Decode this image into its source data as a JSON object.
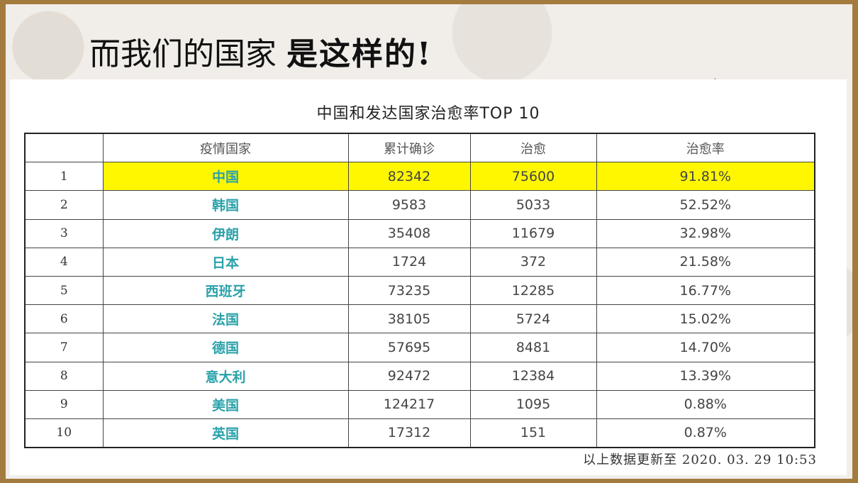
{
  "heading": {
    "part1": "而我们的国家",
    "part2": "是这样的!"
  },
  "table": {
    "title": "中国和发达国家治愈率TOP 10",
    "headers": [
      "",
      "疫情国家",
      "累计确诊",
      "治愈",
      "治愈率"
    ],
    "rows": [
      {
        "rank": "1",
        "country": "中国",
        "confirmed": "82342",
        "recovered": "75600",
        "rate": "91.81%"
      },
      {
        "rank": "2",
        "country": "韩国",
        "confirmed": "9583",
        "recovered": "5033",
        "rate": "52.52%"
      },
      {
        "rank": "3",
        "country": "伊朗",
        "confirmed": "35408",
        "recovered": "11679",
        "rate": "32.98%"
      },
      {
        "rank": "4",
        "country": "日本",
        "confirmed": "1724",
        "recovered": "372",
        "rate": "21.58%"
      },
      {
        "rank": "5",
        "country": "西班牙",
        "confirmed": "73235",
        "recovered": "12285",
        "rate": "16.77%"
      },
      {
        "rank": "6",
        "country": "法国",
        "confirmed": "38105",
        "recovered": "5724",
        "rate": "15.02%"
      },
      {
        "rank": "7",
        "country": "德国",
        "confirmed": "57695",
        "recovered": "8481",
        "rate": "14.70%"
      },
      {
        "rank": "8",
        "country": "意大利",
        "confirmed": "92472",
        "recovered": "12384",
        "rate": "13.39%"
      },
      {
        "rank": "9",
        "country": "美国",
        "confirmed": "124217",
        "recovered": "1095",
        "rate": "0.88%"
      },
      {
        "rank": "10",
        "country": "英国",
        "confirmed": "17312",
        "recovered": "151",
        "rate": "0.87%"
      }
    ],
    "update_note": "以上数据更新至 2020. 03. 29  10:53"
  },
  "colors": {
    "highlight": "#fff700",
    "country_text": "#2aa2a9",
    "frame": "#a47b3f"
  }
}
